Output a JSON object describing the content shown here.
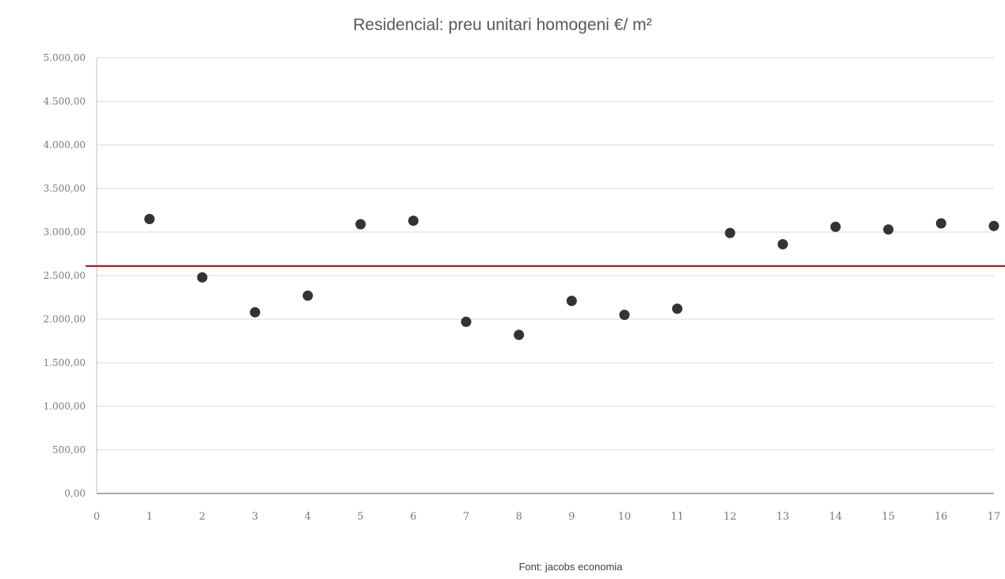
{
  "chart_data": {
    "type": "scatter",
    "title": "Residencial: preu unitari homogeni €/ m²",
    "source": "Font: jacobs economia",
    "xlim": [
      0,
      17
    ],
    "ylim": [
      0,
      5000
    ],
    "x_ticks": [
      "0",
      "1",
      "2",
      "3",
      "4",
      "5",
      "6",
      "7",
      "8",
      "9",
      "10",
      "11",
      "12",
      "13",
      "14",
      "15",
      "16",
      "17"
    ],
    "y_ticks": [
      "0,00",
      "500,00",
      "1.000,00",
      "1.500,00",
      "2.000,00",
      "2.500,00",
      "3.000,00",
      "3.500,00",
      "4.000,00",
      "4.500,00",
      "5.000,00"
    ],
    "grid": true,
    "points": [
      {
        "x": 1,
        "y": 3150
      },
      {
        "x": 2,
        "y": 2480
      },
      {
        "x": 3,
        "y": 2080
      },
      {
        "x": 4,
        "y": 2270
      },
      {
        "x": 5,
        "y": 3090
      },
      {
        "x": 6,
        "y": 3130
      },
      {
        "x": 7,
        "y": 1970
      },
      {
        "x": 8,
        "y": 1820
      },
      {
        "x": 9,
        "y": 2210
      },
      {
        "x": 10,
        "y": 2050
      },
      {
        "x": 11,
        "y": 2120
      },
      {
        "x": 12,
        "y": 2990
      },
      {
        "x": 13,
        "y": 2860
      },
      {
        "x": 14,
        "y": 3060
      },
      {
        "x": 15,
        "y": 3030
      },
      {
        "x": 16,
        "y": 3100
      },
      {
        "x": 17,
        "y": 3070
      }
    ],
    "reference_line": {
      "y": 2610,
      "color": "#c00000"
    },
    "marker_color": "#333333",
    "grid_color": "#d9d9d9"
  }
}
